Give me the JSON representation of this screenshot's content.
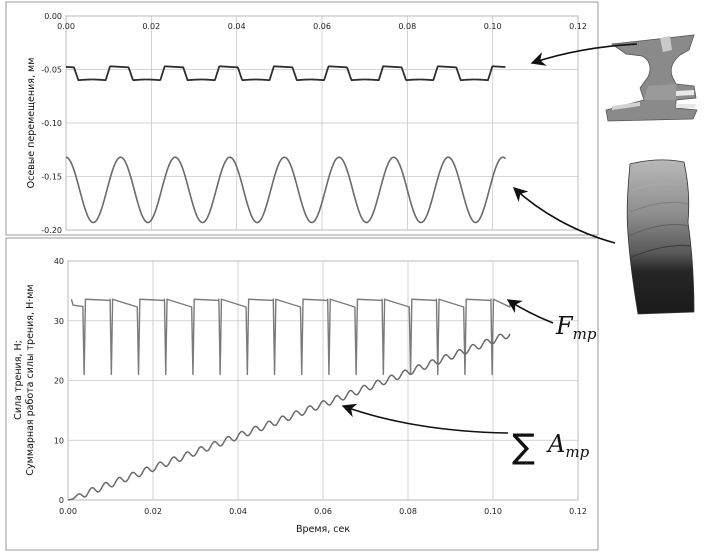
{
  "chart_data": [
    {
      "type": "line",
      "ylabel": "Осевые перемещения, мм",
      "xlim": [
        0,
        0.12
      ],
      "ylim": [
        -0.2,
        0
      ],
      "x_ticks": [
        "0.00",
        "0.02",
        "0.04",
        "0.06",
        "0.08",
        "0.10",
        "0.12"
      ],
      "y_ticks": [
        "0.00",
        "-0.05",
        "-0.10",
        "-0.15",
        "-0.20"
      ],
      "grid": true,
      "series": [
        {
          "t_end": 0.103,
          "mean": -0.0535,
          "amplitude": 0.0065,
          "period": 0.0128,
          "shape": "trapezoid",
          "color": "#2e2e2e"
        },
        {
          "t_end": 0.103,
          "mean": -0.1625,
          "amplitude": 0.0305,
          "period": 0.0128,
          "shape": "sine",
          "color": "#6a6a6a"
        }
      ]
    },
    {
      "type": "line",
      "xlabel": "Время, сек",
      "ylabel": "Сила трения, Н;",
      "ylabel2": "Суммарная работа силы трения, Н·мм",
      "xlim": [
        0,
        0.12
      ],
      "ylim": [
        0,
        40
      ],
      "x_ticks": [
        "0.00",
        "0.02",
        "0.04",
        "0.06",
        "0.08",
        "0.10",
        "0.12"
      ],
      "y_ticks": [
        "0",
        "10",
        "20",
        "30",
        "40"
      ],
      "grid": true,
      "series": [
        {
          "t_start": 0.0008,
          "t_end": 0.104,
          "high": 33.6,
          "mid": 32.2,
          "low": 21.0,
          "period": 0.0064,
          "color": "#7a7a7a"
        },
        {
          "t_start": 0,
          "t_end": 0.104,
          "start_value": 0,
          "end_value": 27.8,
          "color": "#6a6a6a"
        }
      ],
      "annotations": [
        {
          "symbol": "F",
          "subscript": "тр"
        },
        {
          "symbol": "∑A",
          "subscript": "тр"
        }
      ]
    }
  ],
  "annotations": {
    "f_symbol": "F",
    "f_sub": "тр",
    "sum_sign": "∑",
    "a_symbol": "A",
    "a_sub": "тр"
  },
  "colors": {
    "grid": "#c8c8c8",
    "frame": "#8c8c8c",
    "part_gray": "#8a8a8a",
    "blade_dark": "#1f1f1f"
  }
}
